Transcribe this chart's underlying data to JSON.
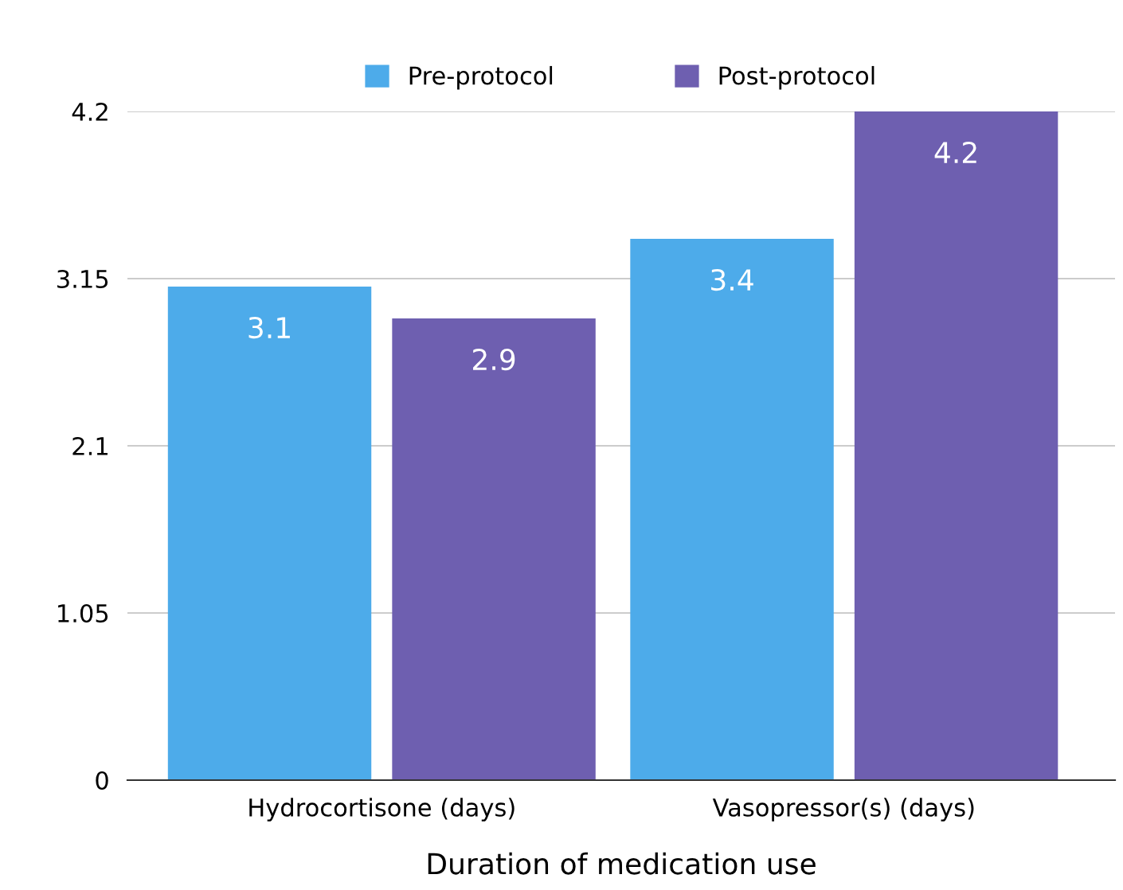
{
  "chart_data": {
    "type": "bar",
    "xlabel": "Duration of medication use",
    "categories": [
      "Hydrocortisone (days)",
      "Vasopressor(s) (days)"
    ],
    "series": [
      {
        "name": "Pre-protocol",
        "color": "#4dabea",
        "values": [
          3.1,
          3.4
        ]
      },
      {
        "name": "Post-protocol",
        "color": "#6e5fb0",
        "values": [
          2.9,
          4.2
        ]
      }
    ],
    "ylim": [
      0,
      4.2
    ],
    "yticks": [
      0,
      1.05,
      2.1,
      3.15,
      4.2
    ],
    "grid": "y",
    "legend": "top",
    "data_labels": true
  }
}
